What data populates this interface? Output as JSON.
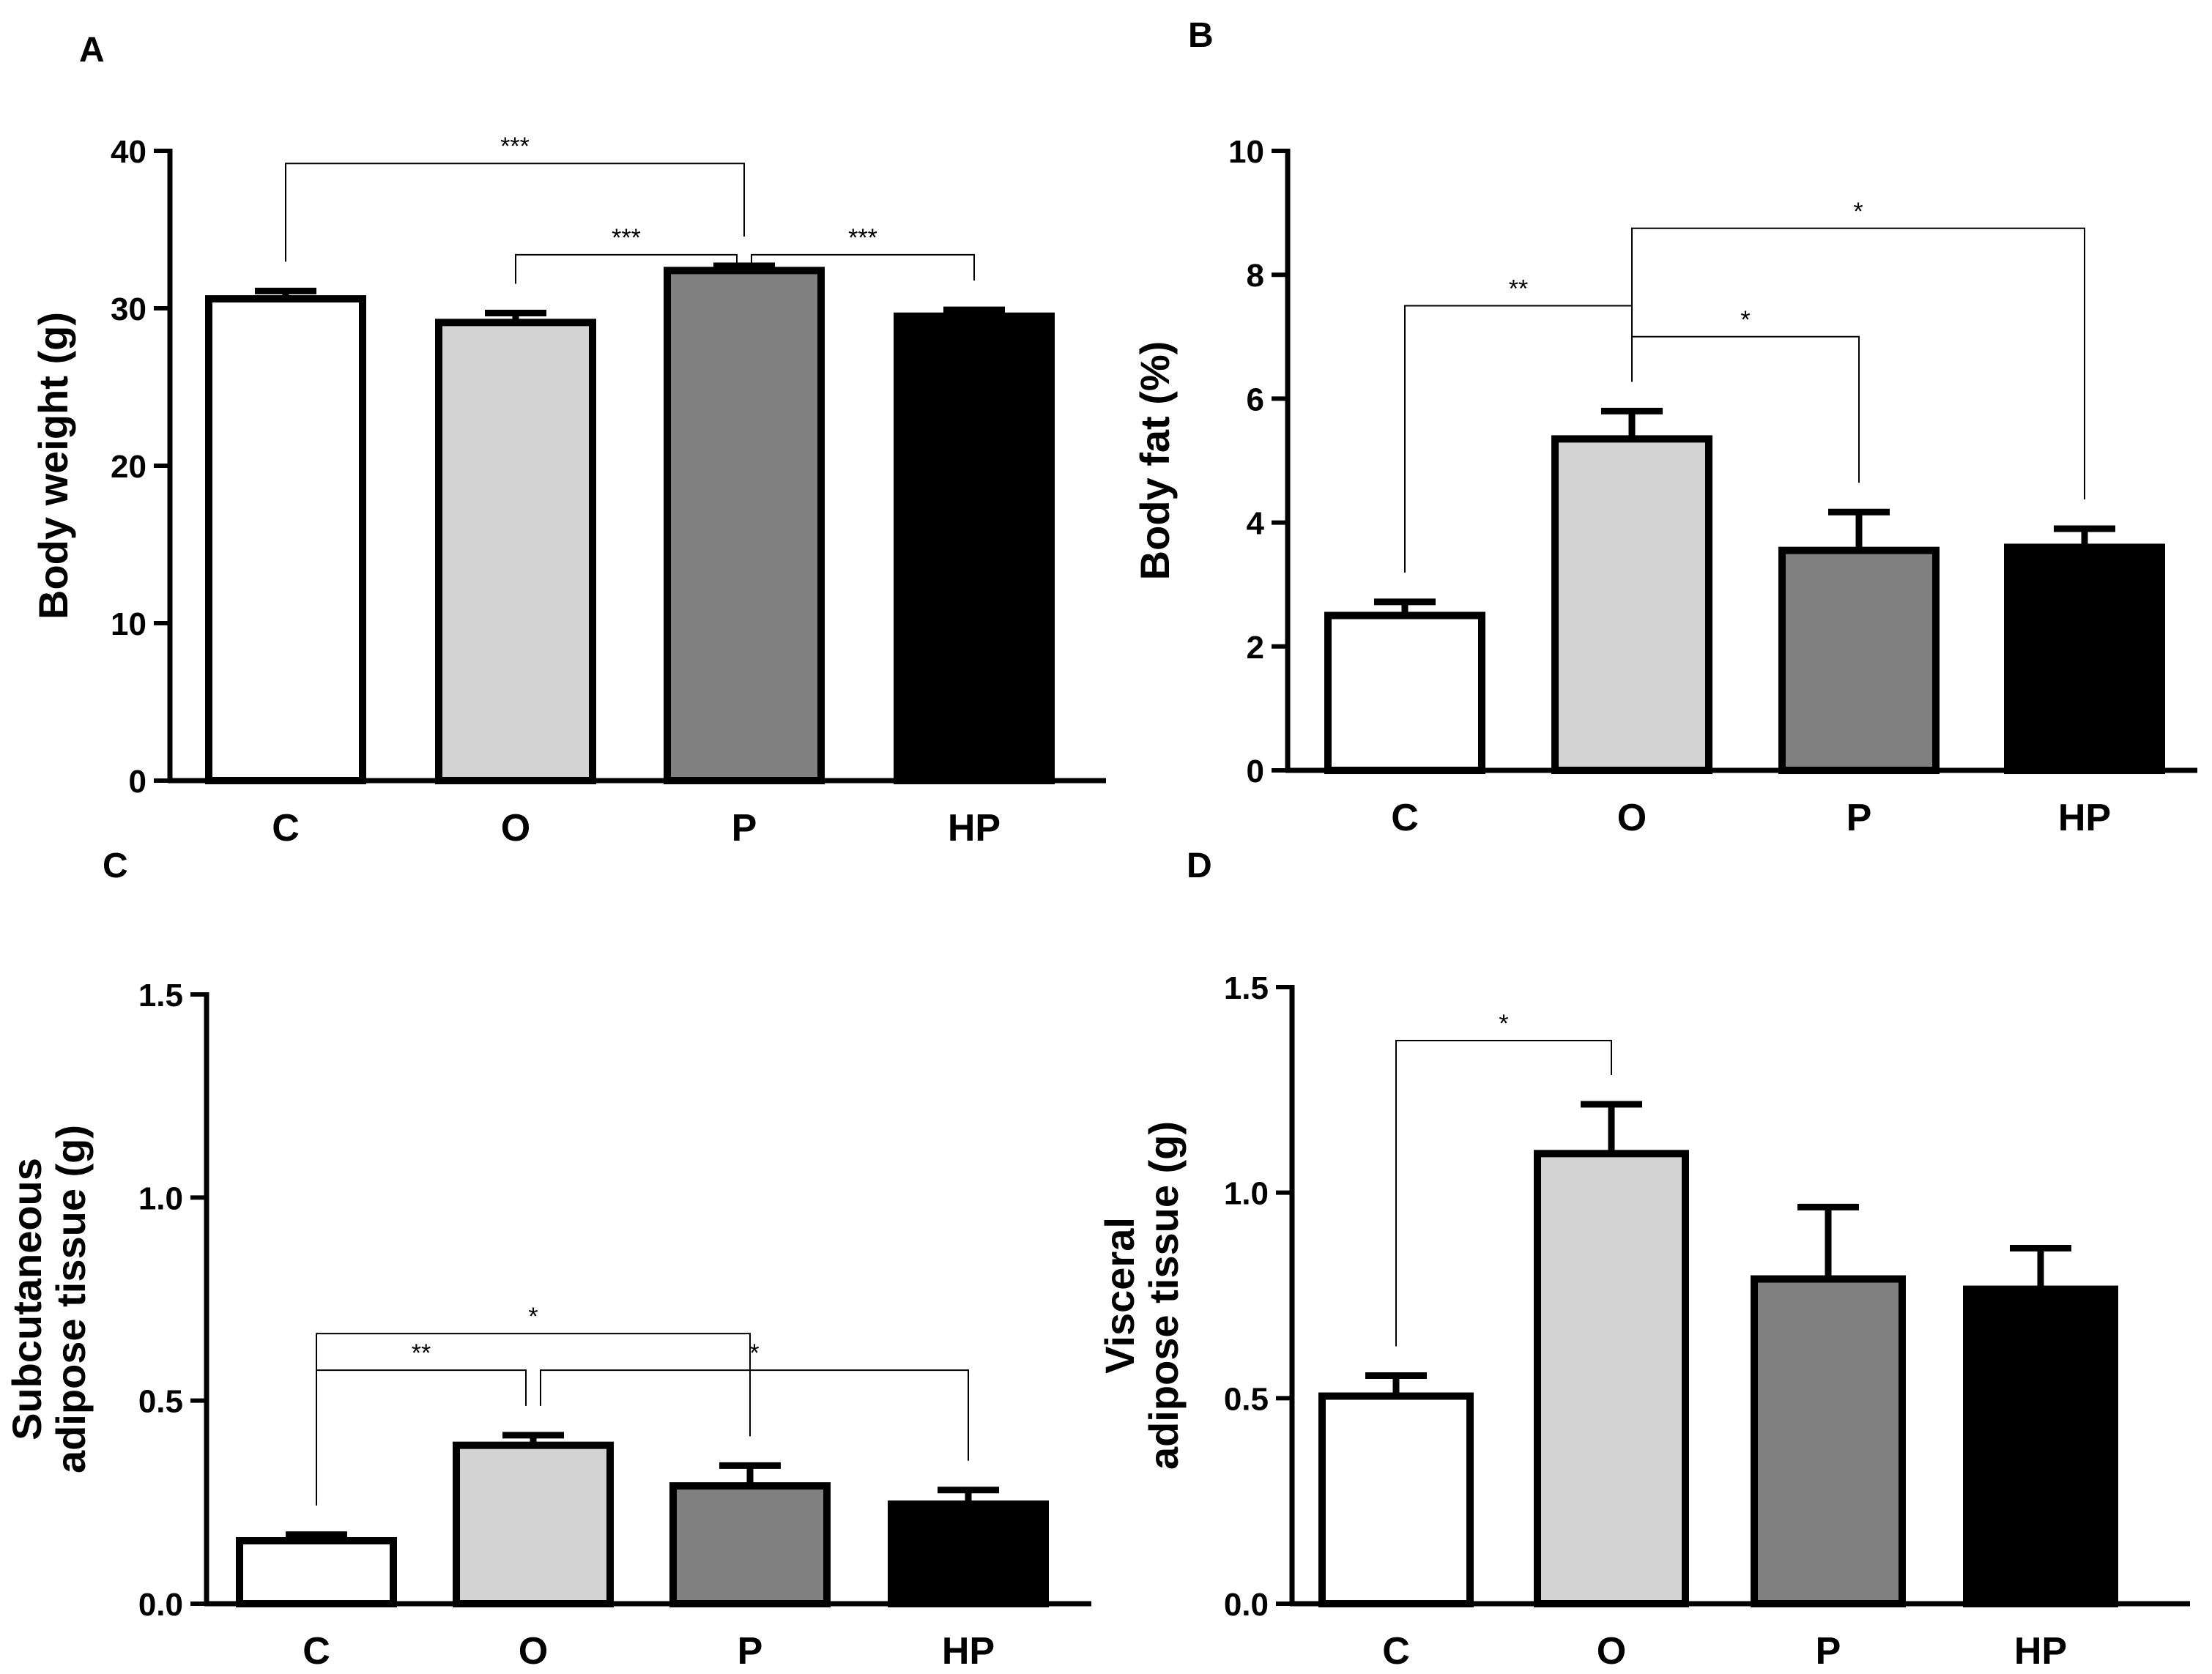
{
  "colors": {
    "C": "#ffffff",
    "O": "#d3d3d3",
    "P": "#808080",
    "HP": "#000000",
    "stroke": "#000000"
  },
  "chart_data": [
    {
      "type": "bar",
      "panel": "A",
      "categories": [
        "C",
        "O",
        "P",
        "HP"
      ],
      "values": [
        30.6,
        29.1,
        32.4,
        29.5
      ],
      "errors": [
        0.5,
        0.6,
        0.3,
        0.4
      ],
      "ylabel": [
        "Body weight (g)"
      ],
      "ylim": [
        0,
        40
      ],
      "yticks": [
        0,
        10,
        20,
        30,
        40
      ],
      "ytick_labels": [
        "0",
        "10",
        "20",
        "30",
        "40"
      ],
      "significance": [
        {
          "from": 0,
          "to": 2,
          "label": "***",
          "y": 39.2
        },
        {
          "from": 1,
          "to": 2,
          "label": "***",
          "y": 33.4
        },
        {
          "from": 2,
          "to": 3,
          "label": "***",
          "y": 33.4
        }
      ]
    },
    {
      "type": "bar",
      "panel": "B",
      "categories": [
        "C",
        "O",
        "P",
        "HP"
      ],
      "values": [
        2.5,
        5.35,
        3.55,
        3.6
      ],
      "errors": [
        0.22,
        0.45,
        0.62,
        0.3
      ],
      "ylabel": [
        "Body fat (%)"
      ],
      "ylim": [
        0,
        10
      ],
      "yticks": [
        0,
        2,
        4,
        6,
        8,
        10
      ],
      "ytick_labels": [
        "0",
        "2",
        "4",
        "6",
        "8",
        "10"
      ],
      "significance": [
        {
          "from": 0,
          "to": 1,
          "label": "**",
          "y": 7.5
        },
        {
          "from": 1,
          "to": 2,
          "label": "*",
          "y": 7.0
        },
        {
          "from": 1,
          "to": 3,
          "label": "*",
          "y": 8.75
        }
      ]
    },
    {
      "type": "bar",
      "panel": "C",
      "categories": [
        "C",
        "O",
        "P",
        "HP"
      ],
      "values": [
        0.155,
        0.39,
        0.29,
        0.245
      ],
      "errors": [
        0.015,
        0.025,
        0.05,
        0.035
      ],
      "ylabel": [
        "Subcutaneous",
        "adipose tissue (g)"
      ],
      "ylim": [
        0,
        1.5
      ],
      "yticks": [
        0,
        0.5,
        1.0,
        1.5
      ],
      "ytick_labels": [
        "0.0",
        "0.5",
        "1.0",
        "1.5"
      ],
      "significance": [
        {
          "from": 0,
          "to": 2,
          "label": "*",
          "y": 0.665
        },
        {
          "from": 0,
          "to": 1,
          "label": "**",
          "y": 0.575
        },
        {
          "from": 1,
          "to": 3,
          "label": "*",
          "y": 0.575
        }
      ]
    },
    {
      "type": "bar",
      "panel": "D",
      "categories": [
        "C",
        "O",
        "P",
        "HP"
      ],
      "values": [
        0.505,
        1.095,
        0.79,
        0.765
      ],
      "errors": [
        0.05,
        0.12,
        0.175,
        0.1
      ],
      "ylabel": [
        "Visceral",
        "adipose tissue (g)"
      ],
      "ylim": [
        0,
        1.5
      ],
      "yticks": [
        0,
        0.5,
        1.0,
        1.5
      ],
      "ytick_labels": [
        "0.0",
        "0.5",
        "1.0",
        "1.5"
      ],
      "significance": [
        {
          "from": 0,
          "to": 1,
          "label": "*",
          "y": 1.37
        }
      ]
    }
  ]
}
